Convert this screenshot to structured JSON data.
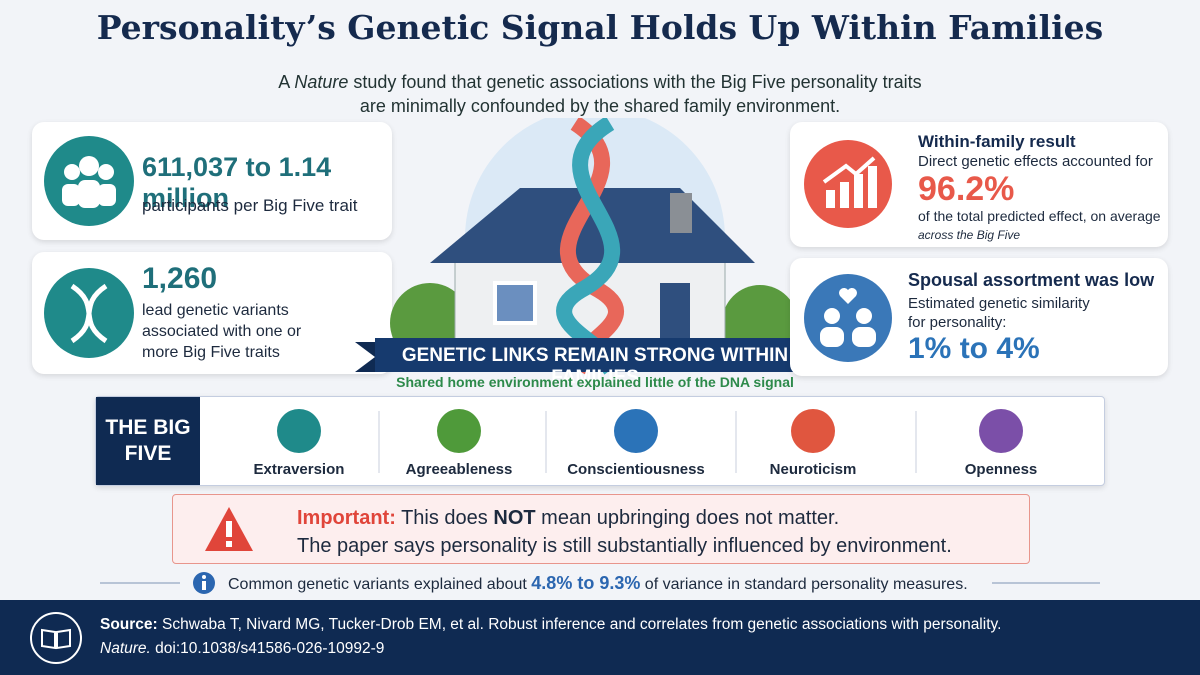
{
  "header": {
    "title": "Personality’s Genetic Signal Holds Up Within Families",
    "subtitle": [
      "A",
      "Nature",
      "study found that genetic associations with the Big Five personality traits",
      "are minimally confounded by the shared family environment."
    ]
  },
  "stats_left": [
    {
      "headline": "611,037 to 1.14 million",
      "text": "participants per Big Five trait"
    },
    {
      "headline": "1,260",
      "text": "lead genetic variants associated with one or more Big Five traits"
    }
  ],
  "stats_right": [
    {
      "heading": "Within-family result",
      "lead": "Direct genetic effects accounted for",
      "figure": "96.2%",
      "text": "of the total predicted effect, on average",
      "note": "across the Big Five"
    },
    {
      "heading": "Spousal assortment was low",
      "lead": "Estimated genetic similarity for personality:",
      "figure": "1% to 4%"
    }
  ],
  "banner": {
    "title": "GENETIC LINKS REMAIN STRONG WITHIN FAMILIES",
    "subtitle": "Shared home environment explained little of the DNA signal"
  },
  "big_five": {
    "label": "THE BIG FIVE",
    "traits": [
      "Extraversion",
      "Agreeableness",
      "Conscientiousness",
      "Neuroticism",
      "Openness"
    ]
  },
  "warning": {
    "label": "Important:",
    "line1": [
      "This does",
      "NOT",
      "mean upbringing does not matter."
    ],
    "line2": "The paper says personality is still substantially influenced by environment."
  },
  "note": [
    "Common genetic variants explained about",
    "4.8% to 9.3%",
    "of variance in standard personality measures."
  ],
  "source": {
    "label": "Source:",
    "citation": "Schwaba T, Nivard MG, Tucker-Drob EM, et al. Robust inference and correlates from genetic associations with personality.",
    "journal": "Nature.",
    "doi": "doi:10.1038/s41586-026-10992-9"
  }
}
